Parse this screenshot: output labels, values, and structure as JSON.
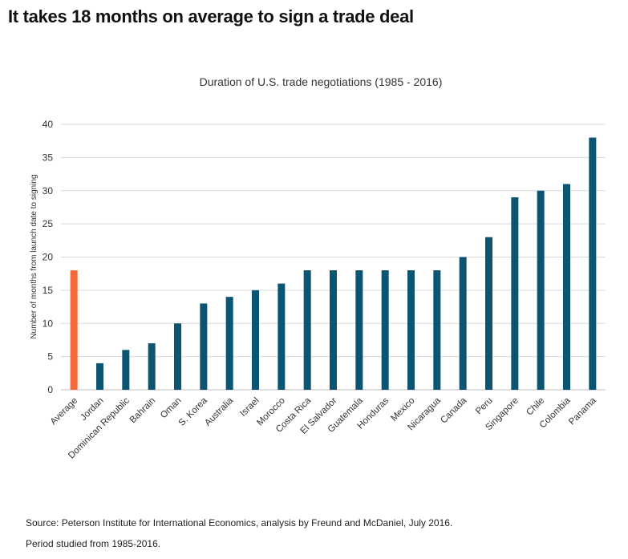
{
  "page": {
    "headline": "It takes 18 months on average to sign a trade deal",
    "source_note": "Source: Peterson Institute for International Economics, analysis by Freund and McDaniel, July 2016.",
    "period_note": "Period studied from 1985-2016."
  },
  "chart_data": {
    "type": "bar",
    "title": "Duration of U.S. trade negotiations (1985 - 2016)",
    "xlabel": "",
    "ylabel": "Number of months from launch date to signing",
    "ylim": [
      0,
      40
    ],
    "yticks": [
      0,
      5,
      10,
      15,
      20,
      25,
      30,
      35,
      40
    ],
    "grid": true,
    "categories": [
      "Average",
      "Jordan",
      "Dominican Republic",
      "Bahrain",
      "Oman",
      "S. Korea",
      "Australia",
      "Israel",
      "Morocco",
      "Costa Rica",
      "El Salvador",
      "Guatemala",
      "Honduras",
      "Mexico",
      "Nicaragua",
      "Canada",
      "Peru",
      "Singapore",
      "Chile",
      "Colombia",
      "Panama"
    ],
    "values": [
      18,
      4,
      6,
      7,
      10,
      13,
      14,
      15,
      16,
      18,
      18,
      18,
      18,
      18,
      18,
      20,
      23,
      29,
      30,
      31,
      38
    ],
    "colors": {
      "average": "#F26B38",
      "country": "#0B5573",
      "grid": "#D9D9D9",
      "axis": "#BFBFBF",
      "text": "#333333"
    }
  }
}
